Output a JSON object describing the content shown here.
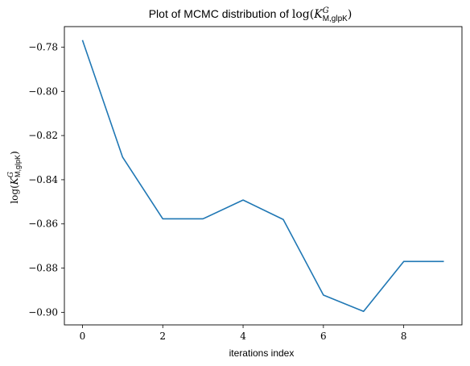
{
  "chart_data": {
    "type": "line",
    "title": {
      "prefix": "Plot of MCMC distribution of ",
      "fn": "log(",
      "var": "K",
      "sup": "G",
      "sub": "M,glpK",
      "close": ")"
    },
    "xlabel": "iterations index",
    "ylabel": {
      "fn": "log(",
      "var": "K",
      "sup": "G",
      "sub": "M,glpK",
      "close": ")"
    },
    "x": [
      0,
      1,
      2,
      3,
      4,
      5,
      6,
      7,
      8,
      9
    ],
    "series": [
      {
        "values": [
          -0.7768,
          -0.8298,
          -0.8577,
          -0.8577,
          -0.8492,
          -0.858,
          -0.8922,
          -0.8996,
          -0.877,
          -0.877
        ],
        "color": "#1f77b4"
      }
    ],
    "xlim": [
      -0.45,
      9.45
    ],
    "ylim": [
      -0.9057,
      -0.7707
    ],
    "xticks": [
      0,
      2,
      4,
      6,
      8
    ],
    "xtick_labels": [
      "0",
      "2",
      "4",
      "6",
      "8"
    ],
    "yticks": [
      -0.78,
      -0.8,
      -0.82,
      -0.84,
      -0.86,
      -0.88,
      -0.9
    ],
    "ytick_labels": [
      "−0.78",
      "−0.80",
      "−0.82",
      "−0.84",
      "−0.86",
      "−0.88",
      "−0.90"
    ],
    "grid": false,
    "legend": false
  }
}
